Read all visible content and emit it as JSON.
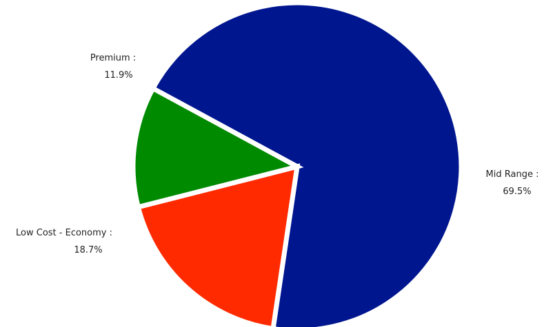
{
  "chart_data": {
    "type": "pie",
    "title": "",
    "legend": "none",
    "slices": [
      {
        "name": "Mid Range",
        "label": "Mid Range :",
        "value_label": "69.5%",
        "value": 69.5,
        "color": "#00168F"
      },
      {
        "name": "Low Cost - Economy",
        "label": "Low Cost - Economy :",
        "value_label": "18.7%",
        "value": 18.7,
        "color": "#FF2A00"
      },
      {
        "name": "Premium",
        "label": "Premium :",
        "value_label": "11.9%",
        "value": 11.9,
        "color": "#008A00"
      }
    ]
  }
}
